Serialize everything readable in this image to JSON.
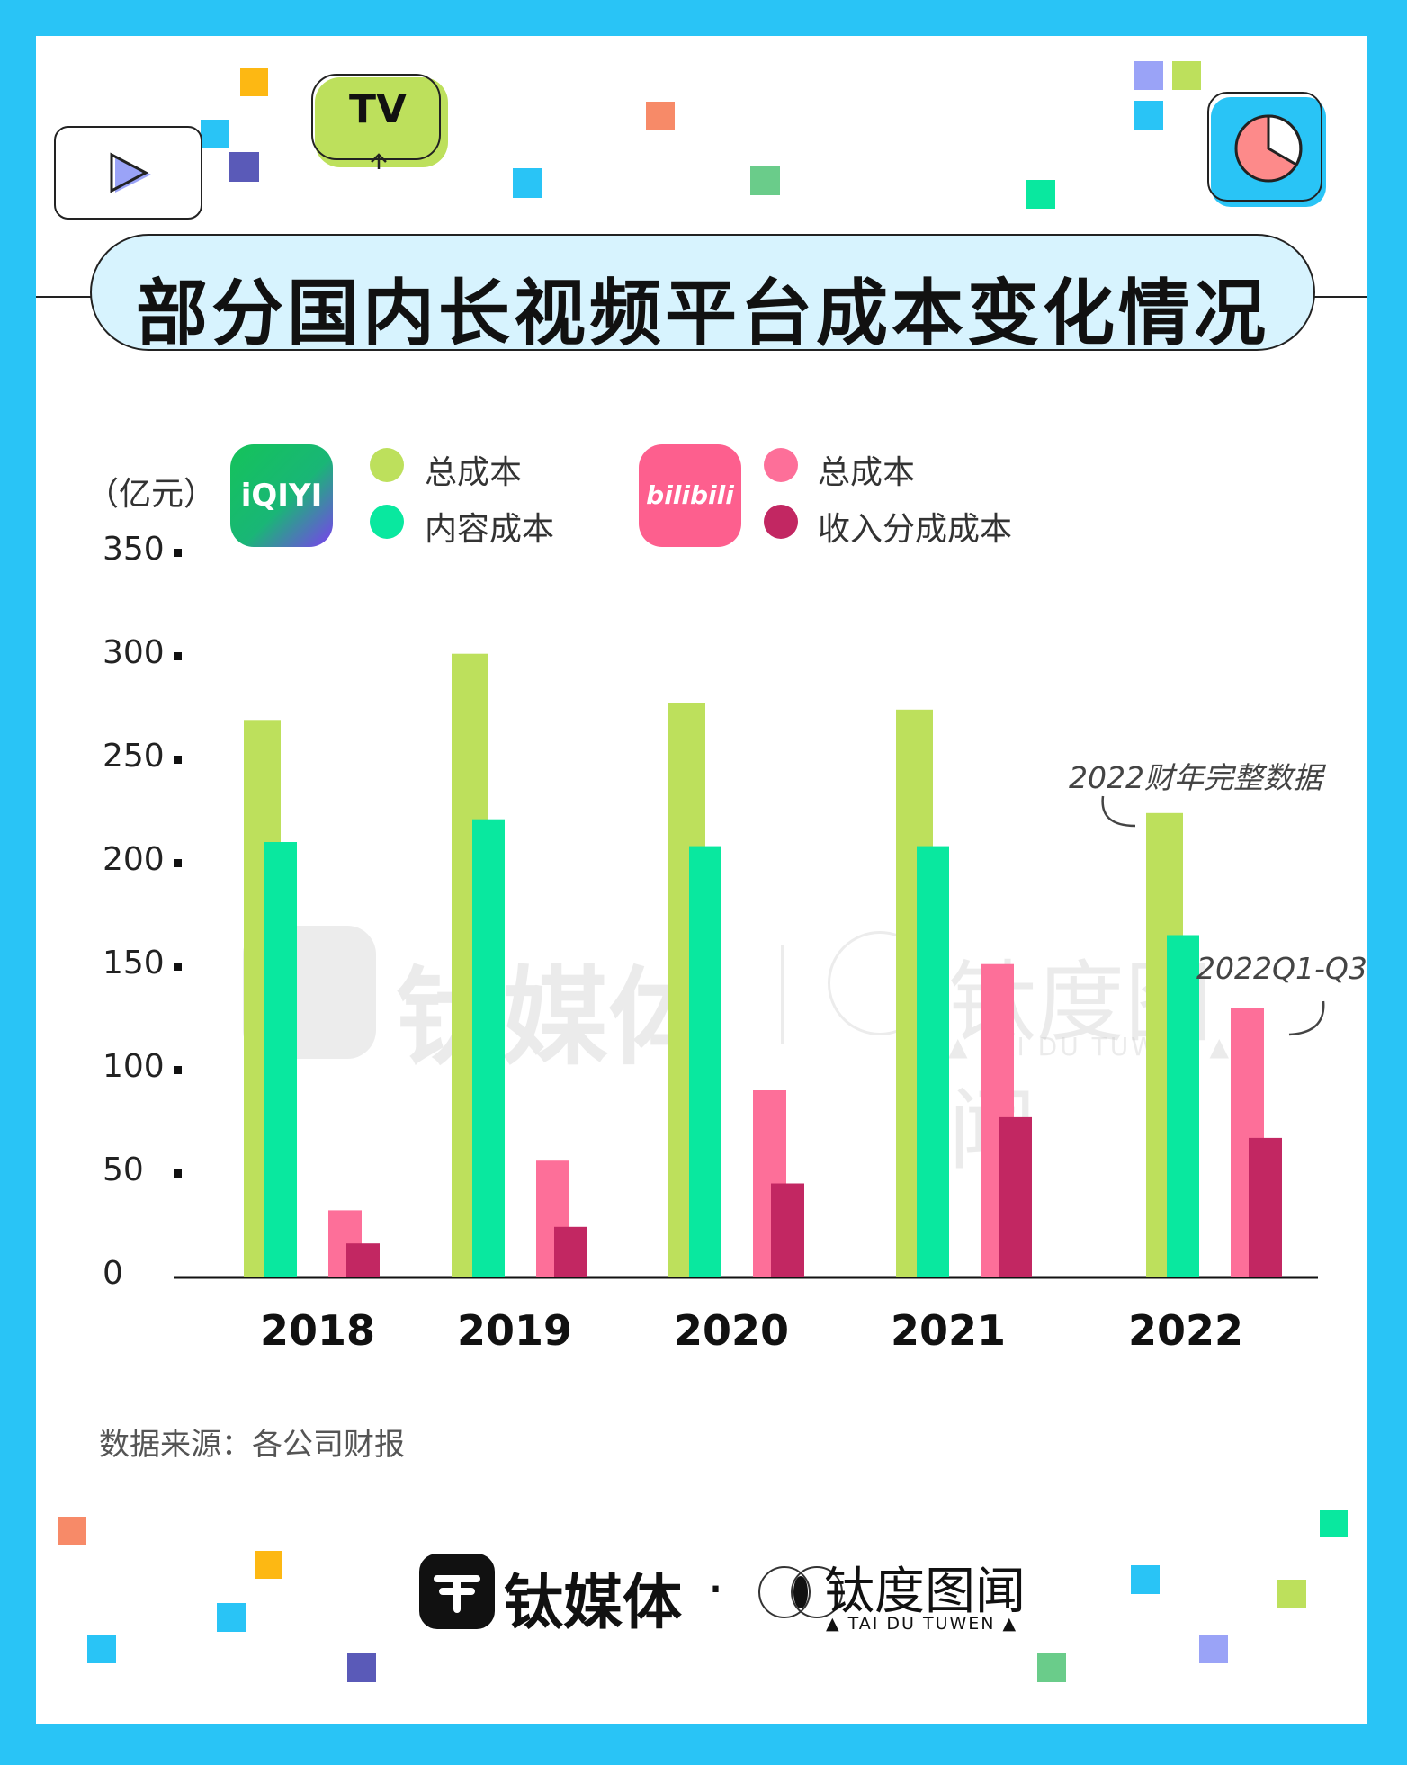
{
  "title": "部分国内长视频平台成本变化情况",
  "unit": "（亿元）",
  "legend": {
    "iqiyi_logo_text": "iQIYI",
    "bili_logo_text": "bilibili",
    "iqiyi_total": "总成本",
    "iqiyi_content": "内容成本",
    "bili_total": "总成本",
    "bili_revshare": "收入分成成本"
  },
  "chart_data": {
    "type": "bar",
    "categories": [
      "2018",
      "2019",
      "2020",
      "2021",
      "2022"
    ],
    "series": [
      {
        "name": "总成本",
        "platform": "iQIYI",
        "color": "#bde05c",
        "values": [
          269,
          301,
          277,
          274,
          224
        ]
      },
      {
        "name": "内容成本",
        "platform": "iQIYI",
        "color": "#09e89f",
        "values": [
          210,
          221,
          208,
          208,
          165
        ]
      },
      {
        "name": "总成本",
        "platform": "bilibili",
        "color": "#fd6f99",
        "values": [
          32,
          56,
          90,
          151,
          130
        ]
      },
      {
        "name": "收入分成成本",
        "platform": "bilibili",
        "color": "#c22762",
        "values": [
          16,
          24,
          45,
          77,
          67
        ]
      }
    ],
    "ylim": [
      0,
      350
    ],
    "yticks": [
      "0",
      "50",
      "100",
      "150",
      "200",
      "250",
      "300",
      "350"
    ],
    "xlabel": "",
    "ylabel": "（亿元）",
    "grid": false,
    "legend_position": "top",
    "annotations": [
      "2022财年完整数据",
      "2022Q1-Q3"
    ]
  },
  "annotations": {
    "full_year": "2022财年完整数据",
    "q1q3": "2022Q1-Q3"
  },
  "source": "数据来源：各公司财报",
  "icons": {
    "tv_label": "TV"
  },
  "watermark": {
    "tmt": "钛媒体",
    "tdtw": "钛度图闻",
    "tdtw_en": "▲ TAI DU TUWEN ▲"
  },
  "brand": {
    "tmt": "钛媒体",
    "dot": "·",
    "tdtw": "钛度图闻",
    "tdtw_en": "▲ TAI DU TUWEN ▲"
  }
}
